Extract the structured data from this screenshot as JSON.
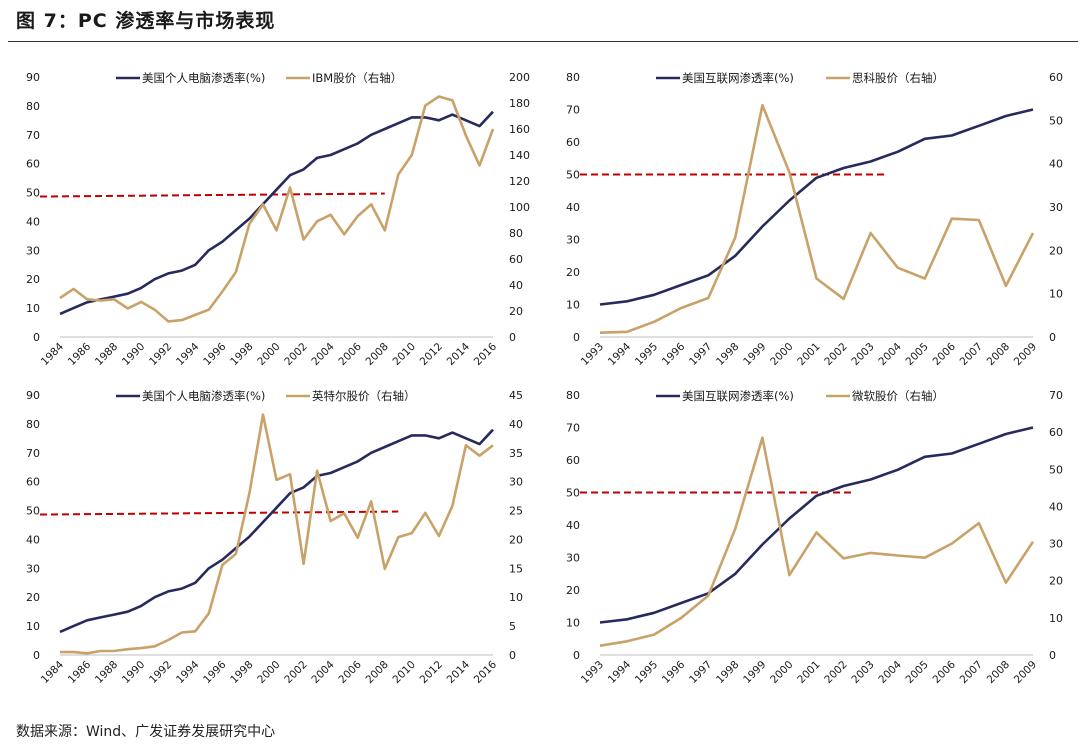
{
  "figure": {
    "title": "图 7：PC 渗透率与市场表现",
    "source": "数据来源：Wind、广发证券发展研究中心"
  },
  "colors": {
    "penetration": "#262a5c",
    "stock": "#c8a268",
    "threshold": "#c00000"
  },
  "chart_data": [
    {
      "type": "line",
      "x": [
        "1984",
        "1985",
        "1986",
        "1987",
        "1988",
        "1989",
        "1990",
        "1991",
        "1992",
        "1993",
        "1994",
        "1995",
        "1996",
        "1997",
        "1998",
        "1999",
        "2000",
        "2001",
        "2002",
        "2003",
        "2004",
        "2005",
        "2006",
        "2007",
        "2008",
        "2009",
        "2010",
        "2011",
        "2012",
        "2013",
        "2014",
        "2015",
        "2016"
      ],
      "x_tick_labels": [
        "1984",
        "1986",
        "1988",
        "1990",
        "1992",
        "1994",
        "1996",
        "1998",
        "2000",
        "2002",
        "2004",
        "2006",
        "2008",
        "2010",
        "2012",
        "2014",
        "2016"
      ],
      "ylim_left": [
        0,
        90
      ],
      "yticks_left": [
        "0",
        "10",
        "20",
        "30",
        "40",
        "50",
        "60",
        "70",
        "80",
        "90"
      ],
      "ylim_right": [
        0,
        200
      ],
      "yticks_right": [
        "0",
        "20",
        "40",
        "60",
        "80",
        "100",
        "120",
        "140",
        "160",
        "180",
        "200"
      ],
      "threshold": 50,
      "threshold_range": [
        "1984",
        "2008"
      ],
      "series": [
        {
          "name": "美国个人电脑渗透率(%)",
          "axis": "left",
          "values": [
            8,
            10,
            12,
            13,
            14,
            15,
            17,
            20,
            22,
            23,
            25,
            30,
            33,
            37,
            41,
            46,
            51,
            56,
            58,
            62,
            63,
            65,
            67,
            70,
            72,
            74,
            76,
            76,
            75,
            77,
            75,
            73,
            78
          ]
        },
        {
          "name": "IBM股价（右轴）",
          "axis": "right",
          "values": [
            30,
            37,
            29,
            28,
            29,
            22,
            27,
            21,
            12,
            13,
            17,
            21,
            35,
            50,
            87,
            102,
            82,
            115,
            75,
            89,
            94,
            79,
            93,
            102,
            82,
            125,
            140,
            178,
            185,
            182,
            155,
            132,
            160
          ]
        }
      ]
    },
    {
      "type": "line",
      "x": [
        "1993",
        "1994",
        "1995",
        "1996",
        "1997",
        "1998",
        "1999",
        "2000",
        "2001",
        "2002",
        "2003",
        "2004",
        "2005",
        "2006",
        "2007",
        "2008",
        "2009"
      ],
      "x_tick_labels": [
        "1993",
        "1994",
        "1995",
        "1996",
        "1997",
        "1998",
        "1999",
        "2000",
        "2001",
        "2002",
        "2003",
        "2004",
        "2005",
        "2006",
        "2007",
        "2008",
        "2009"
      ],
      "ylim_left": [
        0,
        80
      ],
      "yticks_left": [
        "0",
        "10",
        "20",
        "30",
        "40",
        "50",
        "60",
        "70",
        "80"
      ],
      "ylim_right": [
        0,
        60
      ],
      "yticks_right": [
        "0",
        "10",
        "20",
        "30",
        "40",
        "50",
        "60"
      ],
      "threshold": 50,
      "threshold_range": [
        "1993",
        "2003.5"
      ],
      "series": [
        {
          "name": "美国互联网渗透率(%)",
          "axis": "left",
          "values": [
            10,
            11,
            13,
            16,
            19,
            25,
            34,
            42,
            49,
            52,
            54,
            57,
            61,
            62,
            65,
            68,
            70
          ]
        },
        {
          "name": "思科股价（右轴）",
          "axis": "right",
          "values": [
            1,
            1.2,
            3.5,
            6.7,
            9,
            23,
            53.5,
            38,
            13.5,
            8.8,
            24,
            16,
            13.5,
            27.3,
            27,
            11.8,
            24
          ]
        }
      ]
    },
    {
      "type": "line",
      "x": [
        "1984",
        "1985",
        "1986",
        "1987",
        "1988",
        "1989",
        "1990",
        "1991",
        "1992",
        "1993",
        "1994",
        "1995",
        "1996",
        "1997",
        "1998",
        "1999",
        "2000",
        "2001",
        "2002",
        "2003",
        "2004",
        "2005",
        "2006",
        "2007",
        "2008",
        "2009",
        "2010",
        "2011",
        "2012",
        "2013",
        "2014",
        "2015",
        "2016"
      ],
      "x_tick_labels": [
        "1984",
        "1986",
        "1988",
        "1990",
        "1992",
        "1994",
        "1996",
        "1998",
        "2000",
        "2002",
        "2004",
        "2006",
        "2008",
        "2010",
        "2012",
        "2014",
        "2016"
      ],
      "ylim_left": [
        0,
        90
      ],
      "yticks_left": [
        "0",
        "10",
        "20",
        "30",
        "40",
        "50",
        "60",
        "70",
        "80",
        "90"
      ],
      "ylim_right": [
        0,
        45
      ],
      "yticks_right": [
        "0",
        "5",
        "10",
        "15",
        "20",
        "25",
        "30",
        "35",
        "40",
        "45"
      ],
      "threshold": 50,
      "threshold_range": [
        "1984",
        "2009"
      ],
      "series": [
        {
          "name": "美国个人电脑渗透率(%)",
          "axis": "left",
          "values": [
            8,
            10,
            12,
            13,
            14,
            15,
            17,
            20,
            22,
            23,
            25,
            30,
            33,
            37,
            41,
            46,
            51,
            56,
            58,
            62,
            63,
            65,
            67,
            70,
            72,
            74,
            76,
            76,
            75,
            77,
            75,
            73,
            78
          ]
        },
        {
          "name": "英特尔股价（右轴）",
          "axis": "right",
          "values": [
            0.5,
            0.5,
            0.3,
            0.7,
            0.7,
            1,
            1.2,
            1.5,
            2.6,
            3.9,
            4.1,
            7.2,
            15.6,
            17.5,
            28,
            41.6,
            30.3,
            31.3,
            15.8,
            31.9,
            23.2,
            24.5,
            20.3,
            26.6,
            14.9,
            20.4,
            21.1,
            24.6,
            20.6,
            25.8,
            36.3,
            34.5,
            36.3
          ]
        }
      ]
    },
    {
      "type": "line",
      "x": [
        "1993",
        "1994",
        "1995",
        "1996",
        "1997",
        "1998",
        "1999",
        "2000",
        "2001",
        "2002",
        "2003",
        "2004",
        "2005",
        "2006",
        "2007",
        "2008",
        "2009"
      ],
      "x_tick_labels": [
        "1993",
        "1994",
        "1995",
        "1996",
        "1997",
        "1998",
        "1999",
        "2000",
        "2001",
        "2002",
        "2003",
        "2004",
        "2005",
        "2006",
        "2007",
        "2008",
        "2009"
      ],
      "ylim_left": [
        0,
        80
      ],
      "yticks_left": [
        "0",
        "10",
        "20",
        "30",
        "40",
        "50",
        "60",
        "70",
        "80"
      ],
      "ylim_right": [
        0,
        70
      ],
      "yticks_right": [
        "0",
        "10",
        "20",
        "30",
        "40",
        "50",
        "60",
        "70"
      ],
      "threshold": 50,
      "threshold_range": [
        "1993",
        "2002.3"
      ],
      "series": [
        {
          "name": "美国互联网渗透率(%)",
          "axis": "left",
          "values": [
            10,
            11,
            13,
            16,
            19,
            25,
            34,
            42,
            49,
            52,
            54,
            57,
            61,
            62,
            65,
            68,
            70
          ]
        },
        {
          "name": "微软股价（右轴）",
          "axis": "right",
          "values": [
            2.5,
            3.7,
            5.5,
            10,
            16,
            34,
            58.5,
            21.5,
            33,
            26,
            27.5,
            26.8,
            26.2,
            30,
            35.5,
            19.5,
            30.5
          ]
        }
      ]
    }
  ]
}
